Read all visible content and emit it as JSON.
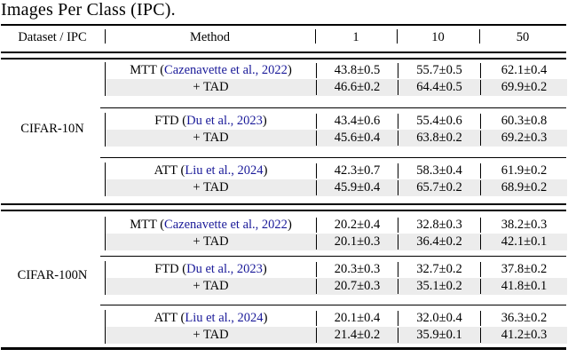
{
  "caption": "Images Per Class (IPC).",
  "header": {
    "dataset_ipc": "Dataset / IPC",
    "method": "Method",
    "ipc_1": "1",
    "ipc_10": "10",
    "ipc_50": "50"
  },
  "colors": {
    "citation_blue": "#1a1a99",
    "tad_row_highlight": "#ececec",
    "rule_color": "#000000",
    "background": "#ffffff"
  },
  "sections": [
    {
      "dataset": "CIFAR-10N",
      "blocks": [
        {
          "method_row": {
            "pre": "MTT (",
            "citation": "Cazenavette et al., 2022",
            "post": ")",
            "values": [
              "43.8±0.5",
              "55.7±0.5",
              "62.1±0.4"
            ]
          },
          "tad_row": {
            "label": "+ TAD",
            "values": [
              "46.6±0.2",
              "64.4±0.5",
              "69.9±0.2"
            ]
          }
        },
        {
          "method_row": {
            "pre": "FTD (",
            "citation": "Du et al., 2023",
            "post": ")",
            "values": [
              "43.4±0.6",
              "55.4±0.6",
              "60.3±0.8"
            ]
          },
          "tad_row": {
            "label": "+ TAD",
            "values": [
              "45.6±0.4",
              "63.8±0.2",
              "69.2±0.3"
            ]
          }
        },
        {
          "method_row": {
            "pre": "ATT (",
            "citation": "Liu et al., 2024",
            "post": ")",
            "values": [
              "42.3±0.7",
              "58.3±0.4",
              "61.9±0.2"
            ]
          },
          "tad_row": {
            "label": "+ TAD",
            "values": [
              "45.9±0.4",
              "65.7±0.2",
              "68.9±0.2"
            ]
          }
        }
      ]
    },
    {
      "dataset": "CIFAR-100N",
      "blocks": [
        {
          "method_row": {
            "pre": "MTT (",
            "citation": "Cazenavette et al., 2022",
            "post": ")",
            "values": [
              "20.2±0.4",
              "32.8±0.3",
              "38.2±0.3"
            ]
          },
          "tad_row": {
            "label": "+ TAD",
            "values": [
              "20.1±0.3",
              "36.4±0.2",
              "42.1±0.1"
            ]
          }
        },
        {
          "method_row": {
            "pre": "FTD (",
            "citation": "Du et al., 2023",
            "post": ")",
            "values": [
              "20.3±0.3",
              "32.7±0.2",
              "37.8±0.2"
            ]
          },
          "tad_row": {
            "label": "+ TAD",
            "values": [
              "20.7±0.3",
              "35.1±0.2",
              "41.8±0.1"
            ]
          }
        },
        {
          "method_row": {
            "pre": "ATT (",
            "citation": "Liu et al., 2024",
            "post": ")",
            "values": [
              "20.1±0.4",
              "32.0±0.4",
              "36.3±0.2"
            ]
          },
          "tad_row": {
            "label": "+ TAD",
            "values": [
              "21.4±0.2",
              "35.9±0.1",
              "41.2±0.3"
            ]
          }
        }
      ]
    }
  ]
}
